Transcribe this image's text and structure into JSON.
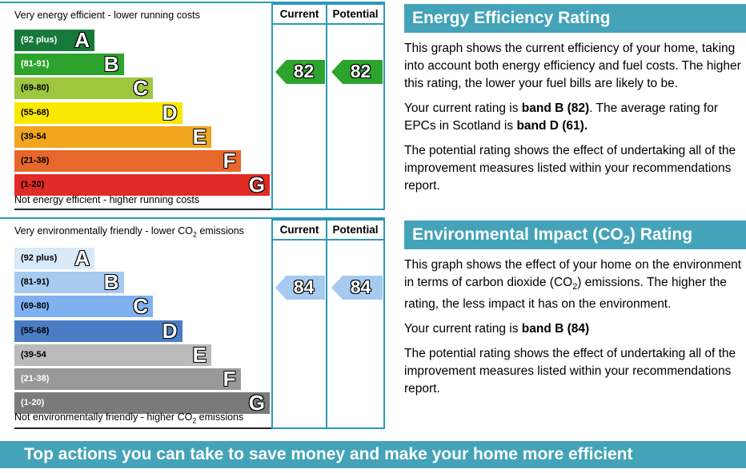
{
  "colors": {
    "teal_bar": "#44a3b8",
    "column_border": "#2a9ab6",
    "energy_arrow": "#2ca32c",
    "env_arrow": "#a6caf0"
  },
  "charts": [
    {
      "name": "energy-efficiency",
      "top_caption": [
        {
          "t": "Very energy efficient - lower running costs"
        }
      ],
      "bottom_caption": [
        {
          "t": "Not energy efficient - higher running costs"
        }
      ],
      "columns": {
        "current": "Current",
        "potential": "Potential"
      },
      "bands": [
        {
          "range": "(92 plus)",
          "letter": "A",
          "color": "#16793a",
          "label_color": "#ffffff"
        },
        {
          "range": "(81-91)",
          "letter": "B",
          "color": "#2ca32c",
          "label_color": "#ffffff"
        },
        {
          "range": "(69-80)",
          "letter": "C",
          "color": "#9ec73f",
          "label_color": "#000000"
        },
        {
          "range": "(55-68)",
          "letter": "D",
          "color": "#f9e800",
          "label_color": "#000000"
        },
        {
          "range": "(39-54",
          "letter": "E",
          "color": "#f0a51e",
          "label_color": "#000000"
        },
        {
          "range": "(21-38)",
          "letter": "F",
          "color": "#e8672b",
          "label_color": "#000000"
        },
        {
          "range": "(1-20)",
          "letter": "G",
          "color": "#e22b27",
          "label_color": "#000000"
        }
      ],
      "current": {
        "value": "82",
        "arrow_color": "#2ca32c"
      },
      "potential": {
        "value": "82",
        "arrow_color": "#2ca32c"
      }
    },
    {
      "name": "environmental-impact",
      "top_caption": [
        {
          "t": "Very environmentally friendly - lower CO"
        },
        {
          "t": "2",
          "sub": true
        },
        {
          "t": " emissions"
        }
      ],
      "bottom_caption": [
        {
          "t": "Not environmentally friendly - higher CO"
        },
        {
          "t": "2",
          "sub": true
        },
        {
          "t": " emissions"
        }
      ],
      "columns": {
        "current": "Current",
        "potential": "Potential"
      },
      "bands": [
        {
          "range": "(92 plus)",
          "letter": "A",
          "color": "#d8e9f8",
          "label_color": "#000000"
        },
        {
          "range": "(81-91)",
          "letter": "B",
          "color": "#a6caf0",
          "label_color": "#000000"
        },
        {
          "range": "(69-80)",
          "letter": "C",
          "color": "#7fb1f0",
          "label_color": "#000000"
        },
        {
          "range": "(55-68)",
          "letter": "D",
          "color": "#4b7dc4",
          "label_color": "#000000"
        },
        {
          "range": "(39-54",
          "letter": "E",
          "color": "#bababa",
          "label_color": "#000000"
        },
        {
          "range": "(21-38)",
          "letter": "F",
          "color": "#999999",
          "label_color": "#ffffff"
        },
        {
          "range": "(1-20)",
          "letter": "G",
          "color": "#7a7a7a",
          "label_color": "#ffffff"
        }
      ],
      "current": {
        "value": "84",
        "arrow_color": "#a6caf0"
      },
      "potential": {
        "value": "84",
        "arrow_color": "#a6caf0"
      }
    }
  ],
  "panels": [
    {
      "title": [
        {
          "t": "Energy Efficiency Rating"
        }
      ],
      "paragraphs": [
        [
          {
            "t": "This graph shows the current efficiency of your home, taking into account both energy efficiency and fuel costs. The higher this rating, the lower your fuel bills are likely to be."
          }
        ],
        [
          {
            "t": "Your current rating is "
          },
          {
            "t": "band B (82)",
            "b": true
          },
          {
            "t": ". The average rating for EPCs in Scotland is "
          },
          {
            "t": "band D (61).",
            "b": true
          }
        ],
        [
          {
            "t": "The potential rating shows the effect of undertaking all of the improvement measures listed within your recommendations report."
          }
        ]
      ]
    },
    {
      "title": [
        {
          "t": "Environmental Impact (CO"
        },
        {
          "t": "2",
          "sub": true
        },
        {
          "t": ") Rating"
        }
      ],
      "paragraphs": [
        [
          {
            "t": "This graph shows the effect of your home on the environment in terms of carbon dioxide (CO"
          },
          {
            "t": "2",
            "sub": true
          },
          {
            "t": ") emissions. The higher the rating, the less impact it has on the environment."
          }
        ],
        [
          {
            "t": "Your current rating is "
          },
          {
            "t": "band B (84)",
            "b": true
          }
        ],
        [
          {
            "t": "The potential rating shows the effect of undertaking all of the improvement measures listed within your recommendations report."
          }
        ]
      ]
    }
  ],
  "banner": {
    "label": "Top actions you can take to save money and make your home more efficient"
  },
  "chart_data": [
    {
      "type": "bar",
      "title": "Energy Efficiency Rating",
      "categories": [
        "A (92 plus)",
        "B (81-91)",
        "C (69-80)",
        "D (55-68)",
        "E (39-54)",
        "F (21-38)",
        "G (1-20)"
      ],
      "series": [
        {
          "name": "Current",
          "values": [
            82
          ],
          "band": "B"
        },
        {
          "name": "Potential",
          "values": [
            82
          ],
          "band": "B"
        }
      ],
      "xlim": [
        1,
        100
      ],
      "annotations": [
        "Average rating for EPCs in Scotland: band D (61)"
      ],
      "legend_position": "top-columns",
      "grid": false
    },
    {
      "type": "bar",
      "title": "Environmental Impact (CO2) Rating",
      "categories": [
        "A (92 plus)",
        "B (81-91)",
        "C (69-80)",
        "D (55-68)",
        "E (39-54)",
        "F (21-38)",
        "G (1-20)"
      ],
      "series": [
        {
          "name": "Current",
          "values": [
            84
          ],
          "band": "B"
        },
        {
          "name": "Potential",
          "values": [
            84
          ],
          "band": "B"
        }
      ],
      "xlim": [
        1,
        100
      ],
      "legend_position": "top-columns",
      "grid": false
    }
  ]
}
